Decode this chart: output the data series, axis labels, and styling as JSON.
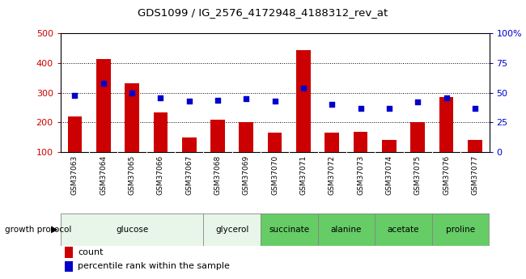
{
  "title": "GDS1099 / IG_2576_4172948_4188312_rev_at",
  "categories": [
    "GSM37063",
    "GSM37064",
    "GSM37065",
    "GSM37066",
    "GSM37067",
    "GSM37068",
    "GSM37069",
    "GSM37070",
    "GSM37071",
    "GSM37072",
    "GSM37073",
    "GSM37074",
    "GSM37075",
    "GSM37076",
    "GSM37077"
  ],
  "bar_values": [
    220,
    415,
    333,
    235,
    148,
    210,
    200,
    165,
    445,
    165,
    167,
    140,
    200,
    285,
    140
  ],
  "dot_values_pct": [
    48,
    58,
    50,
    46,
    43,
    44,
    45,
    43,
    54,
    40,
    37,
    37,
    42,
    46,
    37
  ],
  "ylim_left": [
    100,
    500
  ],
  "ylim_right": [
    0,
    100
  ],
  "yticks_left": [
    100,
    200,
    300,
    400,
    500
  ],
  "yticks_right": [
    0,
    25,
    50,
    75,
    100
  ],
  "yticklabels_right": [
    "0",
    "25",
    "50",
    "75",
    "100%"
  ],
  "bar_color": "#cc0000",
  "dot_color": "#0000cc",
  "protocol_groups": [
    {
      "label": "glucose",
      "start": 0,
      "end": 4,
      "color": "#e8f5e9"
    },
    {
      "label": "glycerol",
      "start": 5,
      "end": 6,
      "color": "#e8f5e9"
    },
    {
      "label": "succinate",
      "start": 7,
      "end": 8,
      "color": "#66cc66"
    },
    {
      "label": "alanine",
      "start": 9,
      "end": 10,
      "color": "#66cc66"
    },
    {
      "label": "acetate",
      "start": 11,
      "end": 12,
      "color": "#66cc66"
    },
    {
      "label": "proline",
      "start": 13,
      "end": 14,
      "color": "#66cc66"
    }
  ],
  "legend_count_label": "count",
  "legend_pct_label": "percentile rank within the sample",
  "growth_protocol_label": "growth protocol",
  "background_color": "#ffffff",
  "plot_bg_color": "#ffffff",
  "tick_bg_color": "#d0d0d0"
}
